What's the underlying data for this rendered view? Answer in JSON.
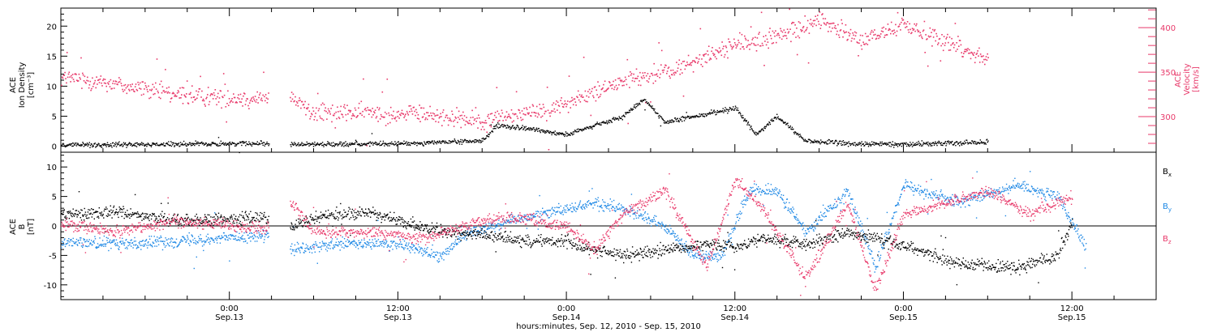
{
  "chart_data": [
    {
      "type": "scatter",
      "panel": "top",
      "ylabel_lines": [
        "ACE",
        "Ion Density",
        "[cm⁻³]"
      ],
      "y2label_lines": [
        "ACE",
        "Velocity",
        "[km/s]"
      ],
      "xlim_hours": [
        0,
        78
      ],
      "ylim": [
        -1,
        23
      ],
      "y2lim": [
        260,
        422
      ],
      "yticks": [
        0,
        5,
        10,
        15,
        20
      ],
      "y2ticks": [
        300,
        350,
        400
      ],
      "grid": false,
      "series": [
        {
          "axis": "left",
          "color": "#000000",
          "data_gap_hours": [
            14.8,
            16.3
          ],
          "values_by_time": [
            {
              "x": 0,
              "y": 0.3
            },
            {
              "x": 8,
              "y": 0.4
            },
            {
              "x": 14.5,
              "y": 0.6
            },
            {
              "x": 16.5,
              "y": 0.4
            },
            {
              "x": 24,
              "y": 0.5
            },
            {
              "x": 30,
              "y": 1.0
            },
            {
              "x": 31,
              "y": 3.5
            },
            {
              "x": 34,
              "y": 2.8
            },
            {
              "x": 36,
              "y": 2.0
            },
            {
              "x": 38,
              "y": 3.5
            },
            {
              "x": 40,
              "y": 5.0
            },
            {
              "x": 41.5,
              "y": 8.0
            },
            {
              "x": 43,
              "y": 4.0
            },
            {
              "x": 46,
              "y": 5.5
            },
            {
              "x": 48,
              "y": 6.5
            },
            {
              "x": 49.5,
              "y": 2.0
            },
            {
              "x": 51,
              "y": 5.0
            },
            {
              "x": 53,
              "y": 1.0
            },
            {
              "x": 56,
              "y": 0.5
            },
            {
              "x": 60,
              "y": 0.4
            },
            {
              "x": 66,
              "y": 0.8
            }
          ]
        },
        {
          "axis": "right",
          "color": "#e8396a",
          "data_gap_hours": [
            14.8,
            16.3
          ],
          "values_by_time": [
            {
              "x": 0,
              "y": 345
            },
            {
              "x": 3,
              "y": 340
            },
            {
              "x": 8,
              "y": 325
            },
            {
              "x": 14.5,
              "y": 320
            },
            {
              "x": 16.5,
              "y": 320
            },
            {
              "x": 18,
              "y": 305
            },
            {
              "x": 22,
              "y": 305
            },
            {
              "x": 26,
              "y": 303
            },
            {
              "x": 30,
              "y": 295
            },
            {
              "x": 32,
              "y": 303
            },
            {
              "x": 35,
              "y": 310
            },
            {
              "x": 38,
              "y": 328
            },
            {
              "x": 40,
              "y": 340
            },
            {
              "x": 43,
              "y": 350
            },
            {
              "x": 45,
              "y": 362
            },
            {
              "x": 48,
              "y": 382
            },
            {
              "x": 50,
              "y": 385
            },
            {
              "x": 52,
              "y": 395
            },
            {
              "x": 54,
              "y": 410
            },
            {
              "x": 57,
              "y": 385
            },
            {
              "x": 60,
              "y": 405
            },
            {
              "x": 63,
              "y": 385
            },
            {
              "x": 66,
              "y": 365
            }
          ]
        }
      ]
    },
    {
      "type": "scatter",
      "panel": "bottom",
      "ylabel_lines": [
        "ACE",
        "B",
        "[nT]"
      ],
      "xlim_hours": [
        0,
        78
      ],
      "ylim": [
        -12.5,
        12.5
      ],
      "yticks": [
        -10,
        -5,
        0,
        5,
        10
      ],
      "zero_line": true,
      "legend_position": "right",
      "xticks": [
        {
          "hour": 12,
          "time": "0:00",
          "date": "Sep.13"
        },
        {
          "hour": 24,
          "time": "12:00",
          "date": "Sep.13"
        },
        {
          "hour": 36,
          "time": "0:00",
          "date": "Sep.14"
        },
        {
          "hour": 48,
          "time": "12:00",
          "date": "Sep.14"
        },
        {
          "hour": 60,
          "time": "0:00",
          "date": "Sep.15"
        },
        {
          "hour": 72,
          "time": "12:00",
          "date": "Sep.15"
        }
      ],
      "xlabel": "hours:minutes, Sep. 12, 2010 - Sep. 15, 2010",
      "series": [
        {
          "name": "Bx",
          "label_base": "B",
          "label_sub": "x",
          "color": "#000000",
          "data_gap_hours": [
            14.8,
            16.3
          ],
          "values_by_time": [
            {
              "x": 0,
              "y": 2
            },
            {
              "x": 4,
              "y": 2.5
            },
            {
              "x": 8,
              "y": 1
            },
            {
              "x": 14.5,
              "y": 1.5
            },
            {
              "x": 16.5,
              "y": 0
            },
            {
              "x": 18,
              "y": 1.5
            },
            {
              "x": 22,
              "y": 2.5
            },
            {
              "x": 26,
              "y": -0.5
            },
            {
              "x": 30,
              "y": -1.5
            },
            {
              "x": 33,
              "y": -2.5
            },
            {
              "x": 36,
              "y": -2.5
            },
            {
              "x": 38,
              "y": -4
            },
            {
              "x": 40,
              "y": -5
            },
            {
              "x": 43,
              "y": -4
            },
            {
              "x": 46,
              "y": -3
            },
            {
              "x": 48,
              "y": -3.5
            },
            {
              "x": 50,
              "y": -2
            },
            {
              "x": 53,
              "y": -3
            },
            {
              "x": 56,
              "y": -1
            },
            {
              "x": 59,
              "y": -2.5
            },
            {
              "x": 61,
              "y": -4
            },
            {
              "x": 64,
              "y": -6.5
            },
            {
              "x": 68,
              "y": -7
            },
            {
              "x": 71,
              "y": -5
            },
            {
              "x": 72,
              "y": 1
            }
          ]
        },
        {
          "name": "By",
          "label_base": "B",
          "label_sub": "y",
          "color": "#1e88e5",
          "data_gap_hours": [
            14.8,
            16.3
          ],
          "values_by_time": [
            {
              "x": 0,
              "y": -2.5
            },
            {
              "x": 4,
              "y": -3
            },
            {
              "x": 8,
              "y": -2.5
            },
            {
              "x": 14.5,
              "y": -1.5
            },
            {
              "x": 16.5,
              "y": -4
            },
            {
              "x": 20,
              "y": -3
            },
            {
              "x": 24,
              "y": -3
            },
            {
              "x": 27,
              "y": -5
            },
            {
              "x": 29,
              "y": -1
            },
            {
              "x": 32,
              "y": 1
            },
            {
              "x": 35,
              "y": 2.5
            },
            {
              "x": 38,
              "y": 4
            },
            {
              "x": 40,
              "y": 3
            },
            {
              "x": 43,
              "y": 0
            },
            {
              "x": 45,
              "y": -5
            },
            {
              "x": 47,
              "y": -5
            },
            {
              "x": 49,
              "y": 6
            },
            {
              "x": 51,
              "y": 6
            },
            {
              "x": 53,
              "y": -1
            },
            {
              "x": 56,
              "y": 6
            },
            {
              "x": 58,
              "y": -7
            },
            {
              "x": 60,
              "y": 7
            },
            {
              "x": 64,
              "y": 4
            },
            {
              "x": 68,
              "y": 7
            },
            {
              "x": 71,
              "y": 5
            },
            {
              "x": 73,
              "y": -4
            }
          ]
        },
        {
          "name": "Bz",
          "label_base": "B",
          "label_sub": "z",
          "color": "#e8396a",
          "data_gap_hours": [
            14.8,
            16.3
          ],
          "values_by_time": [
            {
              "x": 0,
              "y": 0.5
            },
            {
              "x": 4,
              "y": -1
            },
            {
              "x": 8,
              "y": 1
            },
            {
              "x": 14.5,
              "y": -0.5
            },
            {
              "x": 16.5,
              "y": 4
            },
            {
              "x": 18,
              "y": -1
            },
            {
              "x": 22,
              "y": -1
            },
            {
              "x": 26,
              "y": -2
            },
            {
              "x": 30,
              "y": 1
            },
            {
              "x": 33,
              "y": 1.5
            },
            {
              "x": 36,
              "y": 0
            },
            {
              "x": 38,
              "y": -4
            },
            {
              "x": 40,
              "y": 2
            },
            {
              "x": 43,
              "y": 6
            },
            {
              "x": 46,
              "y": -7
            },
            {
              "x": 48,
              "y": 8
            },
            {
              "x": 50,
              "y": 3
            },
            {
              "x": 53,
              "y": -9
            },
            {
              "x": 56,
              "y": 4
            },
            {
              "x": 58,
              "y": -11
            },
            {
              "x": 60,
              "y": 2
            },
            {
              "x": 63,
              "y": 4
            },
            {
              "x": 66,
              "y": 6
            },
            {
              "x": 69,
              "y": 2
            },
            {
              "x": 72,
              "y": 5
            }
          ]
        }
      ]
    }
  ]
}
